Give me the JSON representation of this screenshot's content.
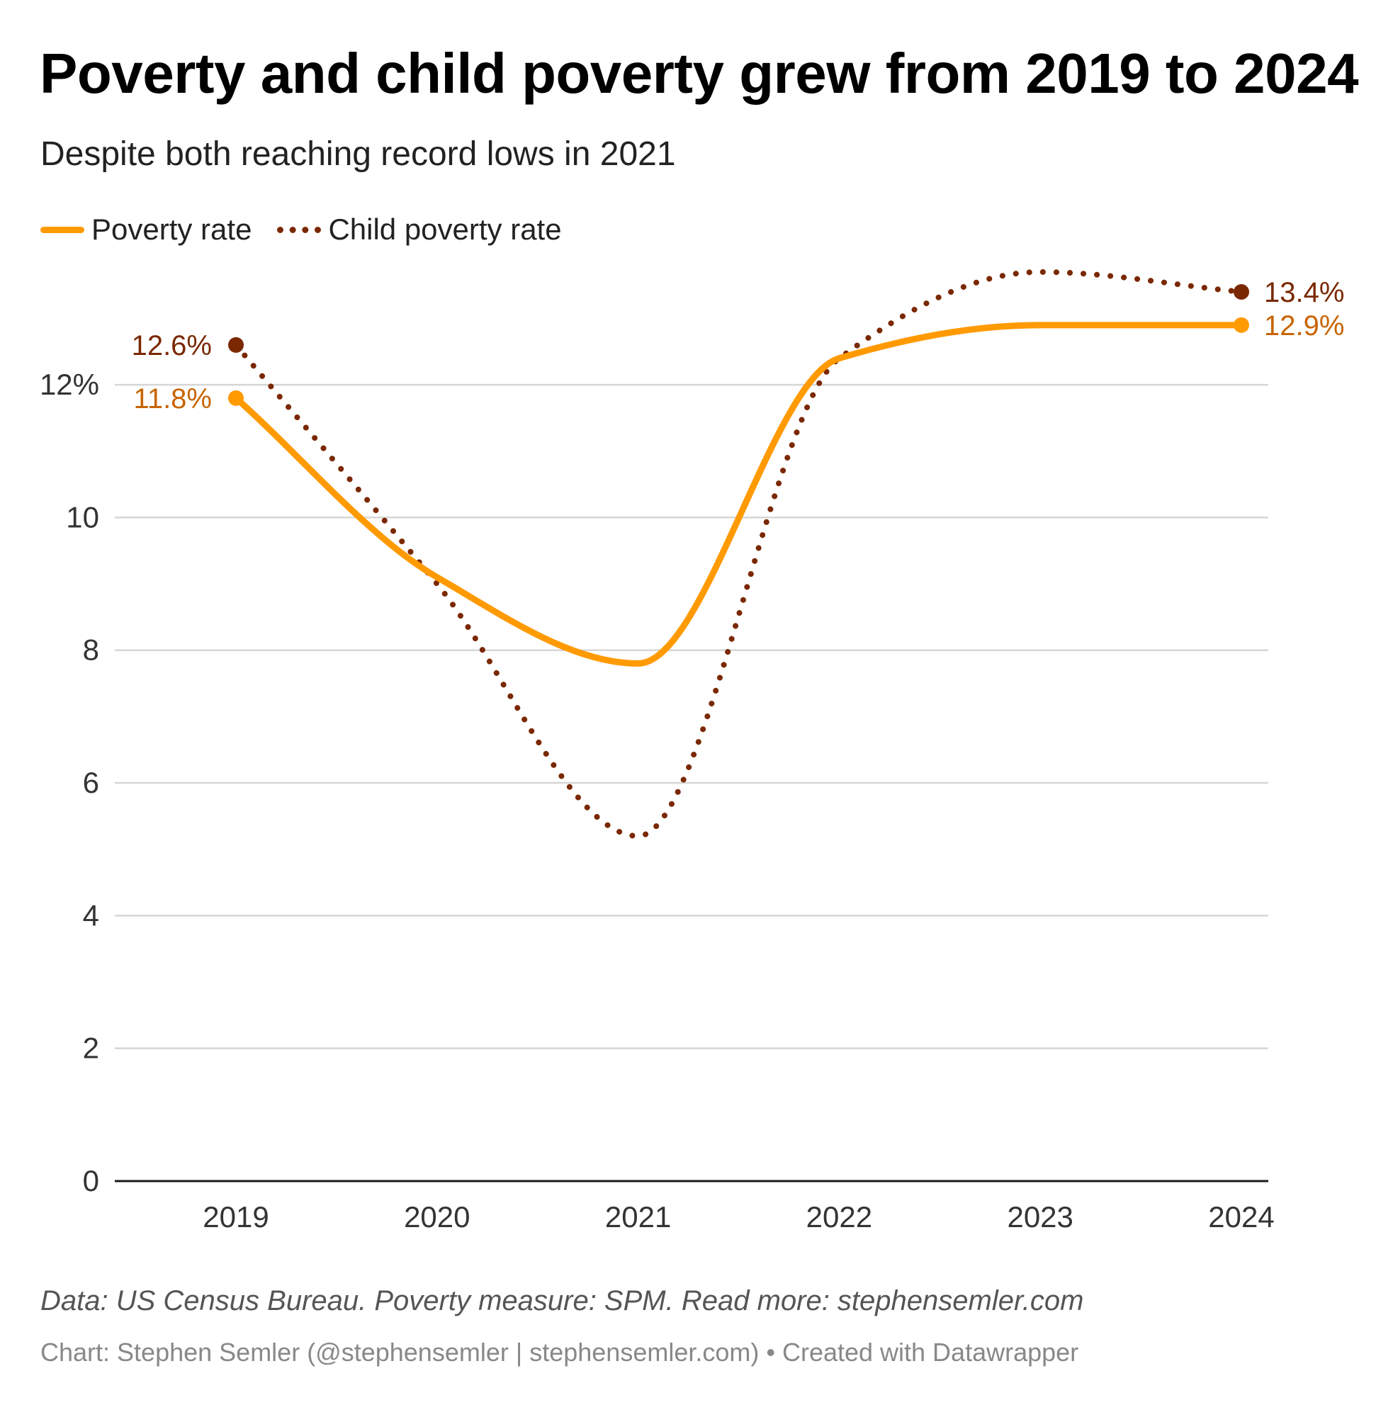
{
  "chart_data": {
    "type": "line",
    "title": "Poverty and child poverty grew from 2019 to 2024",
    "subtitle": "Despite both reaching record lows in 2021",
    "x": [
      "2019",
      "2020",
      "2021",
      "2022",
      "2023",
      "2024"
    ],
    "series": [
      {
        "name": "Poverty rate",
        "values": [
          11.8,
          9.1,
          7.8,
          12.4,
          12.9,
          12.9
        ],
        "color": "#FF9A00",
        "style": "solid",
        "end_labels": {
          "first": "11.8%",
          "last": "12.9%"
        },
        "label_color": "#C86400"
      },
      {
        "name": "Child poverty rate",
        "values": [
          12.6,
          9.0,
          5.2,
          12.4,
          13.7,
          13.4
        ],
        "color": "#7A2800",
        "style": "dotted",
        "end_labels": {
          "first": "12.6%",
          "last": "13.4%"
        },
        "label_color": "#7A2800"
      }
    ],
    "ylim": [
      0,
      13.4
    ],
    "y_ticks": [
      0,
      2,
      4,
      6,
      8,
      10,
      12
    ],
    "y_tick_labels": [
      "0",
      "2",
      "4",
      "6",
      "8",
      "10",
      "12%"
    ],
    "grid": true,
    "legend_placement": "top-left",
    "xlabel": "",
    "ylabel": ""
  },
  "notes": "Data: US Census Bureau. Poverty measure: SPM. Read more: stephensemler.com",
  "byline": "Chart: Stephen Semler (@stephensemler | stephensemler.com) • Created with Datawrapper",
  "colors": {
    "gridline": "#D6D6D6",
    "axis": "#1A1A1A",
    "tick_text": "#333333"
  }
}
